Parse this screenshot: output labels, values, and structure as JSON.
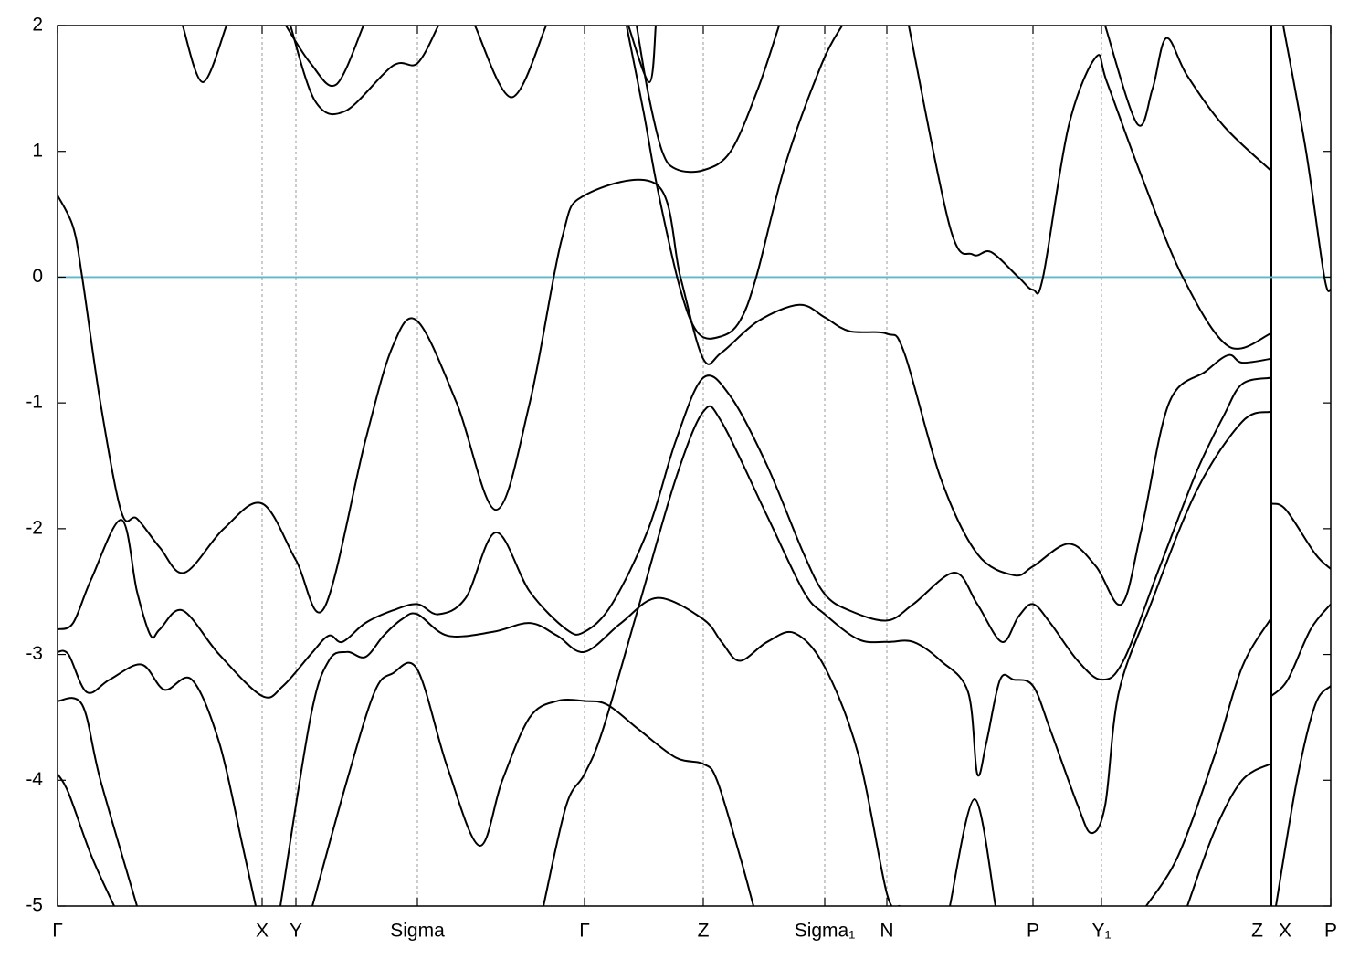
{
  "chart_data": {
    "type": "line",
    "xlim": [
      0,
      1394
    ],
    "ylim": [
      -5,
      2
    ],
    "yticks": [
      -5,
      -4,
      -3,
      -2,
      -1,
      0,
      1,
      2
    ],
    "xticks": [
      {
        "value": 0,
        "label": "Γ"
      },
      {
        "value": 224,
        "label": "X"
      },
      {
        "value": 261,
        "label": "Y"
      },
      {
        "value": 394,
        "label": "Sigma"
      },
      {
        "value": 577,
        "label": "Γ"
      },
      {
        "value": 707,
        "label": "Z"
      },
      {
        "value": 840,
        "label": "Sigma₁"
      },
      {
        "value": 908,
        "label": "N"
      },
      {
        "value": 1068,
        "label": "P"
      },
      {
        "value": 1143,
        "label": "Y₁"
      },
      {
        "value": 1328,
        "label": "Z"
      },
      {
        "value": 1329,
        "label": "X"
      },
      {
        "value": 1394,
        "label": "P"
      }
    ],
    "grid": true,
    "fermi_level": 0,
    "fermi_color": "#5fb8c8",
    "line_color": "#000000",
    "series": [
      {
        "x": [
          0,
          17,
          27,
          47,
          70,
          87,
          112,
          139,
          182,
          224,
          261,
          292,
          337,
          367,
          394,
          437,
          480,
          517,
          552,
          577,
          657,
          682,
          707,
          727,
          767,
          812,
          840,
          867,
          908,
          927,
          967,
          1007,
          1047,
          1068,
          1107,
          1137,
          1165,
          1187,
          1217,
          1257,
          1282,
          1297,
          1328
        ],
        "values": [
          0.65,
          0.4,
          0,
          -1,
          -1.87,
          -1.92,
          -2.15,
          -2.35,
          -2.0,
          -1.8,
          -2.25,
          -2.63,
          -1.3,
          -0.55,
          -0.35,
          -1.0,
          -1.85,
          -1.0,
          0.3,
          0.65,
          0.73,
          0,
          -0.65,
          -0.6,
          -0.35,
          -0.22,
          -0.32,
          -0.43,
          -0.45,
          -0.6,
          -1.6,
          -2.2,
          -2.37,
          -2.3,
          -2.12,
          -2.3,
          -2.6,
          -2.0,
          -1.0,
          -0.75,
          -0.62,
          -0.68,
          -0.65
        ]
      },
      {
        "x": [
          623,
          642,
          657,
          682,
          702,
          727,
          747,
          765,
          797,
          837,
          859
        ],
        "values": [
          2,
          1.3,
          0.7,
          -0.1,
          -0.45,
          -0.47,
          -0.35,
          0,
          0.9,
          1.7,
          2
        ]
      },
      {
        "x": [
          634,
          647,
          662,
          677,
          707,
          737,
          767,
          790
        ],
        "values": [
          2,
          1.45,
          1.0,
          0.86,
          0.85,
          1.0,
          1.5,
          2
        ]
      },
      {
        "x": [
          625,
          648,
          655
        ],
        "values": [
          2,
          1.55,
          2
        ]
      },
      {
        "x": [
          137,
          159,
          185
        ],
        "values": [
          2,
          1.55,
          2
        ]
      },
      {
        "x": [
          250,
          277,
          305,
          335
        ],
        "values": [
          2,
          1.7,
          1.53,
          2
        ]
      },
      {
        "x": [
          255,
          282,
          315,
          367,
          394,
          417
        ],
        "values": [
          2,
          1.4,
          1.32,
          1.68,
          1.7,
          2
        ]
      },
      {
        "x": [
          457,
          497,
          535
        ],
        "values": [
          2,
          1.43,
          2
        ]
      },
      {
        "x": [
          932,
          977,
          1002,
          1022,
          1052,
          1068,
          1079,
          1107,
          1137,
          1149,
          1187,
          1232,
          1282,
          1328
        ],
        "values": [
          2,
          0.4,
          0.18,
          0.2,
          0,
          -0.1,
          0,
          1.2,
          1.75,
          1.55,
          0.8,
          0,
          -0.55,
          -0.45
        ]
      },
      {
        "x": [
          1147,
          1182,
          1199,
          1214,
          1237,
          1277,
          1328
        ],
        "values": [
          2,
          1.22,
          1.5,
          1.9,
          1.6,
          1.2,
          0.85
        ]
      },
      {
        "x": [
          1329,
          1345,
          1377,
          1394
        ],
        "values": [
          -1.8,
          -1.85,
          -2.2,
          -2.32
        ]
      },
      {
        "x": [
          1342,
          1367,
          1387,
          1394
        ],
        "values": [
          2,
          1,
          0,
          -0.1
        ]
      },
      {
        "x": [
          1329,
          1347,
          1372,
          1394
        ],
        "values": [
          -3.33,
          -3.2,
          -2.8,
          -2.6
        ]
      },
      {
        "x": [
          1334,
          1357,
          1377,
          1394
        ],
        "values": [
          -5,
          -4,
          -3.4,
          -3.25
        ]
      },
      {
        "x": [
          0,
          17,
          37,
          70,
          87,
          102,
          112,
          137,
          177,
          224,
          247,
          277,
          297,
          312,
          337,
          367,
          394,
          417,
          447,
          480,
          517,
          557,
          577,
          607,
          647,
          677,
          707,
          737,
          777,
          817,
          840,
          867,
          908,
          937,
          982,
          1007,
          1034,
          1052,
          1068,
          1087,
          1117,
          1143,
          1167,
          1207,
          1247,
          1277,
          1297,
          1328
        ],
        "values": [
          -2.8,
          -2.75,
          -2.4,
          -1.93,
          -2.5,
          -2.85,
          -2.8,
          -2.65,
          -3.0,
          -3.33,
          -3.25,
          -3.0,
          -2.85,
          -2.9,
          -2.75,
          -2.65,
          -2.6,
          -2.68,
          -2.55,
          -2.03,
          -2.5,
          -2.8,
          -2.82,
          -2.6,
          -2.0,
          -1.3,
          -0.8,
          -0.95,
          -1.5,
          -2.2,
          -2.52,
          -2.65,
          -2.73,
          -2.6,
          -2.35,
          -2.6,
          -2.9,
          -2.7,
          -2.6,
          -2.75,
          -3.05,
          -3.2,
          -3.05,
          -2.3,
          -1.55,
          -1.1,
          -0.85,
          -0.8
        ]
      },
      {
        "x": [
          0,
          12,
          32,
          57,
          92,
          117,
          147,
          177,
          202,
          217
        ],
        "values": [
          -2.98,
          -3.0,
          -3.3,
          -3.2,
          -3.08,
          -3.28,
          -3.2,
          -3.7,
          -4.5,
          -5
        ]
      },
      {
        "x": [
          0,
          27,
          47,
          87
        ],
        "values": [
          -3.37,
          -3.4,
          -4.0,
          -5
        ]
      },
      {
        "x": [
          0,
          12,
          37,
          62
        ],
        "values": [
          -3.95,
          -4.1,
          -4.6,
          -5
        ]
      },
      {
        "x": [
          244,
          277,
          297,
          317,
          337,
          357,
          377,
          394,
          427,
          477,
          517,
          547,
          577,
          617,
          657,
          707,
          727,
          747,
          777,
          807,
          840,
          877,
          908,
          922
        ],
        "values": [
          -5,
          -3.5,
          -3.05,
          -2.98,
          -3.02,
          -2.85,
          -2.72,
          -2.68,
          -2.85,
          -2.82,
          -2.75,
          -2.85,
          -2.98,
          -2.75,
          -2.55,
          -2.72,
          -2.9,
          -3.05,
          -2.9,
          -2.83,
          -3.1,
          -3.8,
          -4.9,
          -5
        ]
      },
      {
        "x": [
          279,
          317,
          347,
          367,
          394,
          427,
          462,
          487,
          517,
          547,
          577,
          602,
          637,
          677,
          707,
          722,
          747,
          762
        ],
        "values": [
          -5,
          -4.0,
          -3.3,
          -3.15,
          -3.12,
          -3.9,
          -4.52,
          -4.0,
          -3.5,
          -3.37,
          -3.37,
          -3.4,
          -3.6,
          -3.82,
          -3.87,
          -4.0,
          -4.6,
          -5
        ]
      },
      {
        "x": [
          532,
          557,
          577,
          597,
          637,
          677,
          707,
          727,
          777,
          817,
          840,
          877,
          908,
          937,
          967,
          997,
          1007,
          1017,
          1032,
          1047,
          1068,
          1087,
          1117,
          1132,
          1147,
          1162,
          1197,
          1247,
          1297,
          1328
        ],
        "values": [
          -5,
          -4.2,
          -3.95,
          -3.6,
          -2.6,
          -1.6,
          -1.07,
          -1.15,
          -1.9,
          -2.5,
          -2.68,
          -2.88,
          -2.9,
          -2.9,
          -3.05,
          -3.3,
          -3.95,
          -3.7,
          -3.2,
          -3.2,
          -3.25,
          -3.6,
          -4.2,
          -4.42,
          -4.2,
          -3.3,
          -2.6,
          -1.7,
          -1.15,
          -1.07
        ]
      },
      {
        "x": [
          977,
          1004,
          1027
        ],
        "values": [
          -5,
          -4.15,
          -5
        ]
      },
      {
        "x": [
          1237,
          1267,
          1297,
          1328
        ],
        "values": [
          -5,
          -4.4,
          -4.0,
          -3.87
        ]
      },
      {
        "x": [
          1192,
          1227,
          1267,
          1297,
          1328
        ],
        "values": [
          -5,
          -4.6,
          -3.8,
          -3.1,
          -2.72
        ]
      }
    ]
  }
}
